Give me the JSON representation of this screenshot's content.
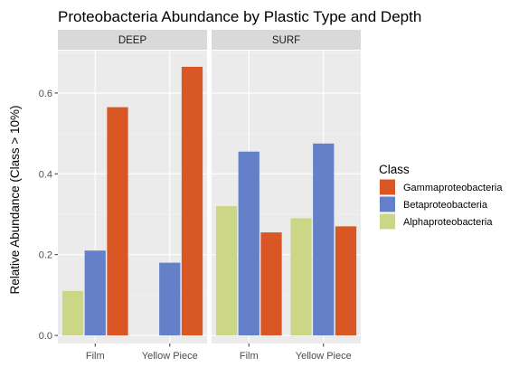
{
  "chart_data": {
    "type": "bar",
    "title": "Proteobacteria Abundance by Plastic Type and Depth",
    "xlabel": "",
    "ylabel": "Relative Abundance (Class > 10%)",
    "ylim": [
      -0.02,
      0.705
    ],
    "yticks": [
      0.0,
      0.2,
      0.4,
      0.6
    ],
    "ytick_labels": [
      "0.0",
      "0.2",
      "0.4",
      "0.6"
    ],
    "categories": [
      "Film",
      "Yellow Piece"
    ],
    "facets": [
      {
        "label": "DEEP",
        "series": [
          {
            "name": "Alphaproteobacteria",
            "values": [
              0.11,
              null
            ]
          },
          {
            "name": "Betaproteobacteria",
            "values": [
              0.21,
              0.18
            ]
          },
          {
            "name": "Gammaproteobacteria",
            "values": [
              0.565,
              0.665
            ]
          }
        ]
      },
      {
        "label": "SURF",
        "series": [
          {
            "name": "Alphaproteobacteria",
            "values": [
              0.32,
              0.29
            ]
          },
          {
            "name": "Betaproteobacteria",
            "values": [
              0.455,
              0.475
            ]
          },
          {
            "name": "Gammaproteobacteria",
            "values": [
              0.255,
              0.27
            ]
          }
        ]
      }
    ],
    "colors": {
      "Alphaproteobacteria": "#ccd687",
      "Betaproteobacteria": "#6380c9",
      "Gammaproteobacteria": "#d95625"
    },
    "legend": {
      "title": "Class",
      "placement": "right",
      "items": [
        "Gammaproteobacteria",
        "Betaproteobacteria",
        "Alphaproteobacteria"
      ]
    },
    "panel_background": "#ebebeb",
    "strip_background": "#d9d9d9",
    "grid": true
  }
}
